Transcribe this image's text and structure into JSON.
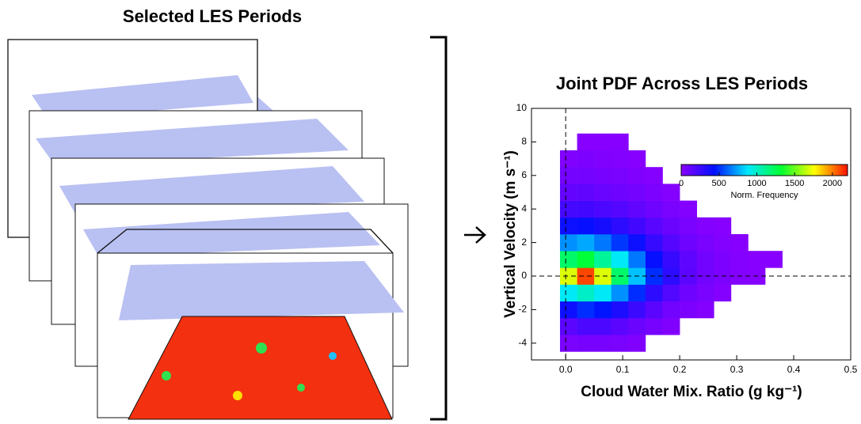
{
  "left_title": "Selected LES Periods",
  "chart_data": {
    "type": "heatmap",
    "title": "Joint PDF Across LES Periods",
    "x_label": "Cloud Water Mix. Ratio (g kg⁻¹)",
    "y_label": "Vertical Velocity (m s⁻¹)",
    "xlim": [
      -0.06,
      0.5
    ],
    "ylim": [
      -5,
      10
    ],
    "xticks": [
      {
        "value": 0,
        "label": "0.0"
      },
      0.1,
      0.2,
      0.3,
      0.4,
      0.5
    ],
    "yticks": [
      -4,
      -2,
      0,
      2,
      4,
      6,
      8,
      10
    ],
    "reference_lines": {
      "x": 0,
      "y": 0
    },
    "x_bins": [
      -0.01,
      0.02,
      0.05,
      0.08,
      0.11,
      0.14,
      0.17,
      0.2,
      0.23,
      0.26,
      0.29,
      0.32,
      0.35,
      0.38,
      0.41
    ],
    "y_bins": [
      -4.5,
      -3.5,
      -2.5,
      -1.5,
      -0.5,
      0.5,
      1.5,
      2.5,
      3.5,
      4.5,
      5.5,
      6.5,
      7.5,
      8.5
    ],
    "z": [
      [
        50,
        60,
        60,
        50,
        30,
        null,
        null,
        null,
        null,
        null,
        null,
        null,
        null,
        null
      ],
      [
        150,
        200,
        200,
        150,
        100,
        60,
        30,
        null,
        null,
        null,
        null,
        null,
        null,
        null
      ],
      [
        400,
        500,
        450,
        350,
        250,
        150,
        80,
        40,
        20,
        null,
        null,
        null,
        null,
        null
      ],
      [
        900,
        1000,
        900,
        700,
        500,
        300,
        180,
        90,
        50,
        20,
        null,
        null,
        null,
        null
      ],
      [
        1700,
        2100,
        1700,
        1200,
        800,
        500,
        300,
        150,
        80,
        40,
        20,
        10,
        null,
        null
      ],
      [
        1200,
        1300,
        1100,
        900,
        650,
        420,
        260,
        140,
        80,
        40,
        20,
        10,
        10,
        null
      ],
      [
        700,
        750,
        650,
        520,
        400,
        270,
        170,
        90,
        50,
        25,
        10,
        null,
        null,
        null
      ],
      [
        400,
        420,
        370,
        300,
        230,
        160,
        100,
        50,
        25,
        10,
        null,
        null,
        null,
        null
      ],
      [
        220,
        230,
        200,
        170,
        130,
        90,
        50,
        25,
        null,
        null,
        null,
        null,
        null,
        null
      ],
      [
        120,
        130,
        110,
        90,
        70,
        40,
        20,
        null,
        null,
        null,
        null,
        null,
        null,
        null
      ],
      [
        70,
        70,
        60,
        50,
        30,
        15,
        null,
        null,
        null,
        null,
        null,
        null,
        null,
        null
      ],
      [
        30,
        40,
        30,
        25,
        10,
        null,
        null,
        null,
        null,
        null,
        null,
        null,
        null,
        null
      ],
      [
        null,
        10,
        10,
        10,
        null,
        null,
        null,
        null,
        null,
        null,
        null,
        null,
        null,
        null
      ]
    ],
    "colormap": [
      "#8a00ff",
      "#0010ff",
      "#00e8ff",
      "#00ff30",
      "#ffff00",
      "#ff1000"
    ],
    "zlim": [
      0,
      2200
    ],
    "colorbar_ticks": [
      0,
      500,
      1000,
      1500,
      2000
    ],
    "colorbar_label": "Norm. Frequency"
  }
}
